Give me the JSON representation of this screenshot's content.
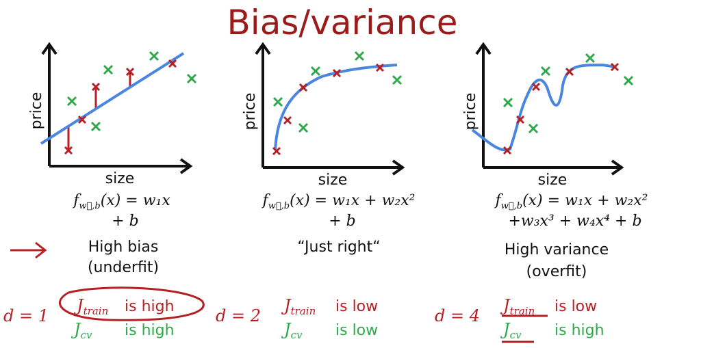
{
  "title": "Bias/variance",
  "panels": [
    {
      "y_label": "price",
      "x_label": "size",
      "formula": {
        "f": "f",
        "sub": "w⃗,b",
        "lines": [
          "(x) = w₁x",
          "+ b"
        ]
      },
      "caption": [
        "High bias",
        "(underfit)"
      ],
      "degree": "d = 1",
      "train": {
        "symbol": "J",
        "sub": "train",
        "text": "is high"
      },
      "cv": {
        "symbol": "J",
        "sub": "cv",
        "text": "is high"
      }
    },
    {
      "y_label": "price",
      "x_label": "size",
      "formula": {
        "f": "f",
        "sub": "w⃗,b",
        "lines": [
          "(x) = w₁x + w₂x²",
          "+ b"
        ]
      },
      "caption": [
        "“Just right“"
      ],
      "degree": "d = 2",
      "train": {
        "symbol": "J",
        "sub": "train",
        "text": "is low"
      },
      "cv": {
        "symbol": "J",
        "sub": "cv",
        "text": "is low"
      }
    },
    {
      "y_label": "price",
      "x_label": "size",
      "formula": {
        "f": "f",
        "sub": "w⃗,b",
        "lines": [
          "(x) = w₁x + w₂x²",
          "+w₃x³ + w₄x⁴ + b"
        ]
      },
      "caption": [
        "High variance",
        "(overfit)"
      ],
      "degree": "d = 4",
      "train": {
        "symbol": "J",
        "sub": "train",
        "text": "is low"
      },
      "cv": {
        "symbol": "J",
        "sub": "cv",
        "text": "is high"
      }
    }
  ]
}
